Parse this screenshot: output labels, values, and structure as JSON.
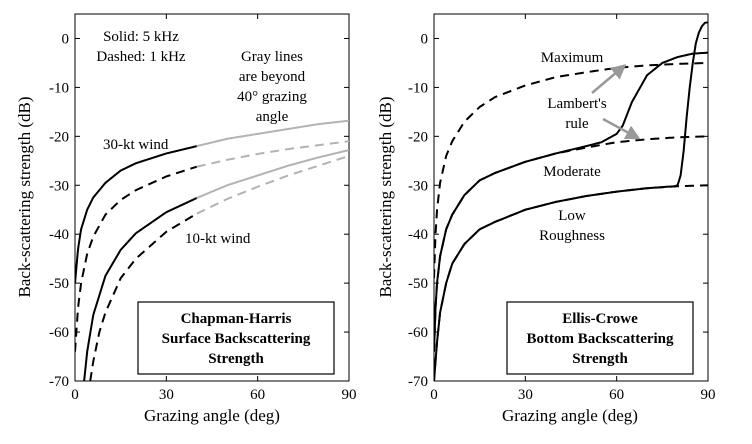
{
  "chart_data": [
    {
      "type": "line",
      "xlabel": "Grazing angle (deg)",
      "ylabel": "Back-scattering strength (dB)",
      "xlim": [
        0,
        90
      ],
      "ylim": [
        -70,
        5
      ],
      "xticks": [
        0,
        30,
        60,
        90
      ],
      "yticks": [
        0,
        -10,
        -20,
        -30,
        -40,
        -50,
        -60,
        -70
      ],
      "legend_text": [
        "Solid: 5 kHz",
        "Dashed: 1 kHz"
      ],
      "note": [
        "Gray lines",
        "are beyond",
        "40° grazing",
        "angle"
      ],
      "labels": {
        "wind30": "30-kt wind",
        "wind10": "10-kt wind"
      },
      "box": [
        "Chapman-Harris",
        "Surface Backscattering",
        "Strength"
      ],
      "colors": {
        "main": "#000000",
        "beyond": "#b3b3b3"
      },
      "series": [
        {
          "wind": "30-kt",
          "freq": "5 kHz",
          "style": "solid",
          "x": [
            0,
            1,
            2,
            4,
            6,
            10,
            15,
            20,
            30,
            40,
            50,
            60,
            70,
            80,
            90
          ],
          "y": [
            -50,
            -43,
            -39,
            -35,
            -32.5,
            -29.5,
            -27,
            -25.5,
            -23.5,
            -22,
            -20.5,
            -19.5,
            -18.5,
            -17.5,
            -16.8
          ]
        },
        {
          "wind": "30-kt",
          "freq": "1 kHz",
          "style": "dashed",
          "x": [
            0,
            1,
            2,
            4,
            6,
            10,
            15,
            20,
            30,
            40,
            50,
            60,
            70,
            80,
            90
          ],
          "y": [
            -64,
            -55,
            -50,
            -44,
            -40.5,
            -36,
            -33,
            -31,
            -28.2,
            -26.2,
            -24.8,
            -23.6,
            -22.6,
            -21.8,
            -21
          ]
        },
        {
          "wind": "10-kt",
          "freq": "5 kHz",
          "style": "solid",
          "x": [
            3,
            4,
            6,
            10,
            15,
            20,
            30,
            40,
            50,
            60,
            70,
            80,
            90
          ],
          "y": [
            -70,
            -64,
            -56.5,
            -48.5,
            -43.2,
            -39.8,
            -35.5,
            -32.6,
            -30,
            -28,
            -26,
            -24.3,
            -22.8
          ]
        },
        {
          "wind": "10-kt",
          "freq": "1 kHz",
          "style": "dashed",
          "x": [
            5,
            6,
            8,
            10,
            15,
            20,
            30,
            40,
            50,
            60,
            70,
            80,
            90
          ],
          "y": [
            -70,
            -66,
            -60,
            -56,
            -49,
            -45,
            -39.5,
            -35.8,
            -32.8,
            -30.3,
            -28,
            -26,
            -24
          ]
        }
      ]
    },
    {
      "type": "line",
      "xlabel": "Grazing angle (deg)",
      "ylabel": "Back-scattering strength (dB)",
      "xlim": [
        0,
        90
      ],
      "ylim": [
        -70,
        5
      ],
      "xticks": [
        0,
        30,
        60,
        90
      ],
      "yticks": [
        0,
        -10,
        -20,
        -30,
        -40,
        -50,
        -60,
        -70
      ],
      "labels": {
        "maximum": "Maximum",
        "moderate": "Moderate",
        "low": [
          "Low",
          "Roughness"
        ],
        "lambert": [
          "Lambert's",
          "rule"
        ]
      },
      "box": [
        "Ellis-Crowe",
        "Bottom Backscattering",
        "Strength"
      ],
      "colors": {
        "main": "#000000",
        "arrow": "#999999"
      },
      "series": [
        {
          "name": "Maximum",
          "style": "dashed",
          "x": [
            0,
            0.5,
            1,
            2,
            4,
            6,
            10,
            15,
            20,
            30,
            40,
            50,
            60,
            70,
            80,
            90
          ],
          "y": [
            -49,
            -40,
            -35,
            -29.5,
            -24,
            -21,
            -17,
            -14,
            -12,
            -9.6,
            -7.9,
            -6.9,
            -6,
            -5.5,
            -5.2,
            -5
          ]
        },
        {
          "name": "Moderate",
          "style": "dashed",
          "x": [
            0,
            0.5,
            1,
            2,
            4,
            6,
            10,
            15,
            20,
            30,
            40,
            50,
            60,
            70,
            80,
            90
          ],
          "y": [
            -64,
            -55,
            -50,
            -44.5,
            -39,
            -36,
            -32,
            -29,
            -27.5,
            -25.2,
            -23.5,
            -22.3,
            -21.2,
            -20.6,
            -20.2,
            -20
          ]
        },
        {
          "name": "Moderate Lambert",
          "style": "solid",
          "x": [
            0,
            0.5,
            1,
            2,
            4,
            6,
            10,
            15,
            20,
            30,
            40,
            50,
            55,
            60,
            62,
            65,
            70,
            75,
            80,
            85,
            90
          ],
          "y": [
            -64,
            -55,
            -50,
            -44.5,
            -39,
            -36,
            -32,
            -29,
            -27.5,
            -25.2,
            -23.5,
            -22,
            -21.2,
            -19.5,
            -17.8,
            -13,
            -7.5,
            -5,
            -3.8,
            -3.1,
            -2.9
          ]
        },
        {
          "name": "Low Roughness",
          "style": "dashed",
          "x": [
            0,
            0.5,
            1,
            2,
            4,
            6,
            10,
            15,
            20,
            30,
            40,
            50,
            60,
            70,
            80,
            90
          ],
          "y": [
            -70,
            -66,
            -62,
            -56,
            -50,
            -46,
            -42,
            -39,
            -37.5,
            -35,
            -33.4,
            -32.2,
            -31.3,
            -30.6,
            -30.2,
            -30
          ]
        },
        {
          "name": "Low Lambert",
          "style": "solid",
          "x": [
            0,
            0.5,
            1,
            2,
            4,
            6,
            10,
            15,
            20,
            30,
            40,
            50,
            60,
            70,
            79,
            80,
            81,
            82,
            83,
            84,
            85,
            86,
            87,
            88,
            89,
            90
          ],
          "y": [
            -70,
            -66,
            -62,
            -56,
            -50,
            -46,
            -42,
            -39,
            -37.5,
            -35,
            -33.4,
            -32.2,
            -31.3,
            -30.6,
            -30.2,
            -30,
            -28,
            -23,
            -16,
            -10,
            -5,
            -1,
            1.2,
            2.5,
            3.2,
            3.3
          ]
        }
      ]
    }
  ]
}
